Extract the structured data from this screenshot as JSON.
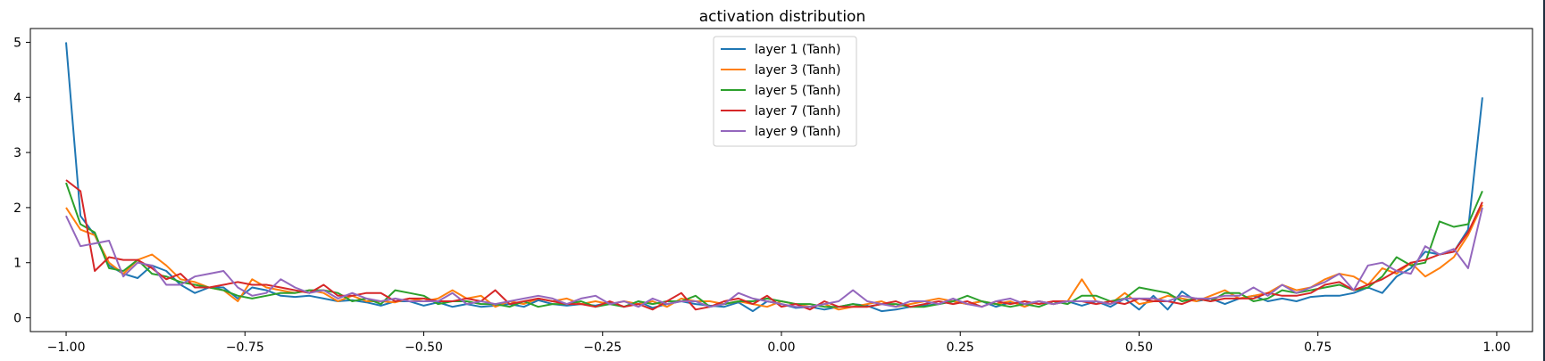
{
  "chart_data": {
    "type": "line",
    "title": "activation distribution",
    "xlabel": "",
    "ylabel": "",
    "xlim": [
      -1.05,
      1.05
    ],
    "ylim": [
      -0.25,
      5.25
    ],
    "xticks": [
      -1.0,
      -0.75,
      -0.5,
      -0.25,
      0.0,
      0.25,
      0.5,
      0.75,
      1.0
    ],
    "xtick_labels": [
      "−1.00",
      "−0.75",
      "−0.50",
      "−0.25",
      "0.00",
      "0.25",
      "0.50",
      "0.75",
      "1.00"
    ],
    "yticks": [
      0,
      1,
      2,
      3,
      4,
      5
    ],
    "ytick_labels": [
      "0",
      "1",
      "2",
      "3",
      "4",
      "5"
    ],
    "grid": false,
    "legend_position": "top-center",
    "series": [
      {
        "name": "layer 1 (Tanh)",
        "color": "#1f77b4",
        "x": [
          -1.0,
          -0.98,
          -0.96,
          -0.94,
          -0.92,
          -0.9,
          -0.88,
          -0.86,
          -0.84,
          -0.82,
          -0.8,
          -0.78,
          -0.76,
          -0.74,
          -0.72,
          -0.7,
          -0.68,
          -0.66,
          -0.64,
          -0.62,
          -0.6,
          -0.58,
          -0.56,
          -0.54,
          -0.52,
          -0.5,
          -0.48,
          -0.46,
          -0.44,
          -0.42,
          -0.4,
          -0.38,
          -0.36,
          -0.34,
          -0.32,
          -0.3,
          -0.28,
          -0.26,
          -0.24,
          -0.22,
          -0.2,
          -0.18,
          -0.16,
          -0.14,
          -0.12,
          -0.1,
          -0.08,
          -0.06,
          -0.04,
          -0.02,
          0.0,
          0.02,
          0.04,
          0.06,
          0.08,
          0.1,
          0.12,
          0.14,
          0.16,
          0.18,
          0.2,
          0.22,
          0.24,
          0.26,
          0.28,
          0.3,
          0.32,
          0.34,
          0.36,
          0.38,
          0.4,
          0.42,
          0.44,
          0.46,
          0.48,
          0.5,
          0.52,
          0.54,
          0.56,
          0.58,
          0.6,
          0.62,
          0.64,
          0.66,
          0.68,
          0.7,
          0.72,
          0.74,
          0.76,
          0.78,
          0.8,
          0.82,
          0.84,
          0.86,
          0.88,
          0.9,
          0.92,
          0.94,
          0.96,
          0.98
        ],
        "y": [
          5.0,
          1.85,
          1.5,
          0.95,
          0.8,
          0.72,
          0.95,
          0.85,
          0.6,
          0.45,
          0.55,
          0.55,
          0.35,
          0.55,
          0.5,
          0.4,
          0.38,
          0.4,
          0.35,
          0.3,
          0.32,
          0.28,
          0.22,
          0.3,
          0.3,
          0.22,
          0.28,
          0.2,
          0.25,
          0.2,
          0.22,
          0.25,
          0.2,
          0.32,
          0.25,
          0.22,
          0.25,
          0.22,
          0.28,
          0.2,
          0.3,
          0.18,
          0.25,
          0.3,
          0.25,
          0.22,
          0.2,
          0.28,
          0.12,
          0.3,
          0.25,
          0.18,
          0.2,
          0.15,
          0.2,
          0.25,
          0.22,
          0.12,
          0.15,
          0.2,
          0.22,
          0.25,
          0.3,
          0.25,
          0.3,
          0.2,
          0.28,
          0.25,
          0.3,
          0.25,
          0.3,
          0.22,
          0.3,
          0.2,
          0.35,
          0.15,
          0.4,
          0.15,
          0.48,
          0.3,
          0.35,
          0.25,
          0.35,
          0.4,
          0.3,
          0.35,
          0.3,
          0.38,
          0.4,
          0.4,
          0.45,
          0.55,
          0.45,
          0.75,
          0.9,
          1.2,
          1.15,
          1.2,
          1.6,
          4.0
        ]
      },
      {
        "name": "layer 3 (Tanh)",
        "color": "#ff7f0e",
        "x": [
          -1.0,
          -0.98,
          -0.96,
          -0.94,
          -0.92,
          -0.9,
          -0.88,
          -0.86,
          -0.84,
          -0.82,
          -0.8,
          -0.78,
          -0.76,
          -0.74,
          -0.72,
          -0.7,
          -0.68,
          -0.66,
          -0.64,
          -0.62,
          -0.6,
          -0.58,
          -0.56,
          -0.54,
          -0.52,
          -0.5,
          -0.48,
          -0.46,
          -0.44,
          -0.42,
          -0.4,
          -0.38,
          -0.36,
          -0.34,
          -0.32,
          -0.3,
          -0.28,
          -0.26,
          -0.24,
          -0.22,
          -0.2,
          -0.18,
          -0.16,
          -0.14,
          -0.12,
          -0.1,
          -0.08,
          -0.06,
          -0.04,
          -0.02,
          0.0,
          0.02,
          0.04,
          0.06,
          0.08,
          0.1,
          0.12,
          0.14,
          0.16,
          0.18,
          0.2,
          0.22,
          0.24,
          0.26,
          0.28,
          0.3,
          0.32,
          0.34,
          0.36,
          0.38,
          0.4,
          0.42,
          0.44,
          0.46,
          0.48,
          0.5,
          0.52,
          0.54,
          0.56,
          0.58,
          0.6,
          0.62,
          0.64,
          0.66,
          0.68,
          0.7,
          0.72,
          0.74,
          0.76,
          0.78,
          0.8,
          0.82,
          0.84,
          0.86,
          0.88,
          0.9,
          0.92,
          0.94,
          0.96,
          0.98
        ],
        "y": [
          2.0,
          1.6,
          1.5,
          1.0,
          0.8,
          1.05,
          1.15,
          0.95,
          0.7,
          0.65,
          0.55,
          0.5,
          0.3,
          0.7,
          0.55,
          0.5,
          0.45,
          0.5,
          0.45,
          0.3,
          0.4,
          0.3,
          0.3,
          0.28,
          0.35,
          0.3,
          0.35,
          0.5,
          0.35,
          0.4,
          0.2,
          0.3,
          0.25,
          0.35,
          0.3,
          0.35,
          0.25,
          0.3,
          0.25,
          0.3,
          0.25,
          0.3,
          0.2,
          0.35,
          0.3,
          0.3,
          0.25,
          0.3,
          0.25,
          0.2,
          0.3,
          0.25,
          0.2,
          0.25,
          0.15,
          0.2,
          0.25,
          0.3,
          0.2,
          0.25,
          0.3,
          0.35,
          0.3,
          0.25,
          0.3,
          0.25,
          0.3,
          0.2,
          0.3,
          0.25,
          0.3,
          0.7,
          0.3,
          0.25,
          0.45,
          0.25,
          0.3,
          0.4,
          0.35,
          0.3,
          0.4,
          0.5,
          0.35,
          0.4,
          0.45,
          0.6,
          0.5,
          0.55,
          0.7,
          0.8,
          0.75,
          0.6,
          0.9,
          0.8,
          1.0,
          0.75,
          0.9,
          1.1,
          1.5,
          2.05
        ]
      },
      {
        "name": "layer 5 (Tanh)",
        "color": "#2ca02c",
        "x": [
          -1.0,
          -0.98,
          -0.96,
          -0.94,
          -0.92,
          -0.9,
          -0.88,
          -0.86,
          -0.84,
          -0.82,
          -0.8,
          -0.78,
          -0.76,
          -0.74,
          -0.72,
          -0.7,
          -0.68,
          -0.66,
          -0.64,
          -0.62,
          -0.6,
          -0.58,
          -0.56,
          -0.54,
          -0.52,
          -0.5,
          -0.48,
          -0.46,
          -0.44,
          -0.42,
          -0.4,
          -0.38,
          -0.36,
          -0.34,
          -0.32,
          -0.3,
          -0.28,
          -0.26,
          -0.24,
          -0.22,
          -0.2,
          -0.18,
          -0.16,
          -0.14,
          -0.12,
          -0.1,
          -0.08,
          -0.06,
          -0.04,
          -0.02,
          0.0,
          0.02,
          0.04,
          0.06,
          0.08,
          0.1,
          0.12,
          0.14,
          0.16,
          0.18,
          0.2,
          0.22,
          0.24,
          0.26,
          0.28,
          0.3,
          0.32,
          0.34,
          0.36,
          0.38,
          0.4,
          0.42,
          0.44,
          0.46,
          0.48,
          0.5,
          0.52,
          0.54,
          0.56,
          0.58,
          0.6,
          0.62,
          0.64,
          0.66,
          0.68,
          0.7,
          0.72,
          0.74,
          0.76,
          0.78,
          0.8,
          0.82,
          0.84,
          0.86,
          0.88,
          0.9,
          0.92,
          0.94,
          0.96,
          0.98
        ],
        "y": [
          2.45,
          1.7,
          1.55,
          0.9,
          0.85,
          1.05,
          0.8,
          0.75,
          0.65,
          0.6,
          0.55,
          0.5,
          0.4,
          0.35,
          0.4,
          0.45,
          0.45,
          0.5,
          0.5,
          0.45,
          0.3,
          0.35,
          0.25,
          0.5,
          0.45,
          0.4,
          0.25,
          0.3,
          0.3,
          0.25,
          0.25,
          0.2,
          0.3,
          0.2,
          0.25,
          0.25,
          0.3,
          0.2,
          0.25,
          0.2,
          0.3,
          0.25,
          0.3,
          0.3,
          0.4,
          0.2,
          0.25,
          0.3,
          0.3,
          0.35,
          0.3,
          0.25,
          0.25,
          0.2,
          0.2,
          0.25,
          0.2,
          0.25,
          0.25,
          0.2,
          0.2,
          0.25,
          0.3,
          0.4,
          0.3,
          0.25,
          0.2,
          0.25,
          0.2,
          0.3,
          0.25,
          0.4,
          0.4,
          0.3,
          0.35,
          0.55,
          0.5,
          0.45,
          0.3,
          0.35,
          0.3,
          0.45,
          0.45,
          0.3,
          0.35,
          0.5,
          0.45,
          0.5,
          0.55,
          0.6,
          0.5,
          0.55,
          0.75,
          1.1,
          0.95,
          1.0,
          1.75,
          1.65,
          1.7,
          2.3
        ]
      },
      {
        "name": "layer 7 (Tanh)",
        "color": "#d62728",
        "x": [
          -1.0,
          -0.98,
          -0.96,
          -0.94,
          -0.92,
          -0.9,
          -0.88,
          -0.86,
          -0.84,
          -0.82,
          -0.8,
          -0.78,
          -0.76,
          -0.74,
          -0.72,
          -0.7,
          -0.68,
          -0.66,
          -0.64,
          -0.62,
          -0.6,
          -0.58,
          -0.56,
          -0.54,
          -0.52,
          -0.5,
          -0.48,
          -0.46,
          -0.44,
          -0.42,
          -0.4,
          -0.38,
          -0.36,
          -0.34,
          -0.32,
          -0.3,
          -0.28,
          -0.26,
          -0.24,
          -0.22,
          -0.2,
          -0.18,
          -0.16,
          -0.14,
          -0.12,
          -0.1,
          -0.08,
          -0.06,
          -0.04,
          -0.02,
          0.0,
          0.02,
          0.04,
          0.06,
          0.08,
          0.1,
          0.12,
          0.14,
          0.16,
          0.18,
          0.2,
          0.22,
          0.24,
          0.26,
          0.28,
          0.3,
          0.32,
          0.34,
          0.36,
          0.38,
          0.4,
          0.42,
          0.44,
          0.46,
          0.48,
          0.5,
          0.52,
          0.54,
          0.56,
          0.58,
          0.6,
          0.62,
          0.64,
          0.66,
          0.68,
          0.7,
          0.72,
          0.74,
          0.76,
          0.78,
          0.8,
          0.82,
          0.84,
          0.86,
          0.88,
          0.9,
          0.92,
          0.94,
          0.96,
          0.98
        ],
        "y": [
          2.5,
          2.3,
          0.85,
          1.1,
          1.05,
          1.05,
          0.9,
          0.7,
          0.8,
          0.55,
          0.55,
          0.6,
          0.65,
          0.6,
          0.6,
          0.55,
          0.5,
          0.45,
          0.6,
          0.4,
          0.4,
          0.45,
          0.45,
          0.3,
          0.35,
          0.35,
          0.3,
          0.3,
          0.35,
          0.3,
          0.5,
          0.25,
          0.3,
          0.35,
          0.3,
          0.25,
          0.25,
          0.2,
          0.3,
          0.2,
          0.25,
          0.15,
          0.3,
          0.45,
          0.15,
          0.2,
          0.3,
          0.35,
          0.25,
          0.4,
          0.2,
          0.25,
          0.15,
          0.3,
          0.2,
          0.2,
          0.2,
          0.25,
          0.3,
          0.2,
          0.25,
          0.3,
          0.25,
          0.3,
          0.2,
          0.3,
          0.25,
          0.3,
          0.25,
          0.3,
          0.3,
          0.3,
          0.25,
          0.3,
          0.25,
          0.35,
          0.3,
          0.3,
          0.25,
          0.35,
          0.3,
          0.35,
          0.35,
          0.35,
          0.45,
          0.4,
          0.4,
          0.45,
          0.6,
          0.65,
          0.5,
          0.6,
          0.7,
          0.85,
          1.0,
          1.05,
          1.15,
          1.2,
          1.55,
          2.1
        ]
      },
      {
        "name": "layer 9 (Tanh)",
        "color": "#9467bd",
        "x": [
          -1.0,
          -0.98,
          -0.96,
          -0.94,
          -0.92,
          -0.9,
          -0.88,
          -0.86,
          -0.84,
          -0.82,
          -0.8,
          -0.78,
          -0.76,
          -0.74,
          -0.72,
          -0.7,
          -0.68,
          -0.66,
          -0.64,
          -0.62,
          -0.6,
          -0.58,
          -0.56,
          -0.54,
          -0.52,
          -0.5,
          -0.48,
          -0.46,
          -0.44,
          -0.42,
          -0.4,
          -0.38,
          -0.36,
          -0.34,
          -0.32,
          -0.3,
          -0.28,
          -0.26,
          -0.24,
          -0.22,
          -0.2,
          -0.18,
          -0.16,
          -0.14,
          -0.12,
          -0.1,
          -0.08,
          -0.06,
          -0.04,
          -0.02,
          0.0,
          0.02,
          0.04,
          0.06,
          0.08,
          0.1,
          0.12,
          0.14,
          0.16,
          0.18,
          0.2,
          0.22,
          0.24,
          0.26,
          0.28,
          0.3,
          0.32,
          0.34,
          0.36,
          0.38,
          0.4,
          0.42,
          0.44,
          0.46,
          0.48,
          0.5,
          0.52,
          0.54,
          0.56,
          0.58,
          0.6,
          0.62,
          0.64,
          0.66,
          0.68,
          0.7,
          0.72,
          0.74,
          0.76,
          0.78,
          0.8,
          0.82,
          0.84,
          0.86,
          0.88,
          0.9,
          0.92,
          0.94,
          0.96,
          0.98
        ],
        "y": [
          1.85,
          1.3,
          1.35,
          1.4,
          0.75,
          1.0,
          0.95,
          0.6,
          0.6,
          0.75,
          0.8,
          0.85,
          0.55,
          0.4,
          0.45,
          0.7,
          0.55,
          0.45,
          0.5,
          0.35,
          0.45,
          0.35,
          0.3,
          0.35,
          0.3,
          0.3,
          0.3,
          0.45,
          0.25,
          0.3,
          0.25,
          0.3,
          0.35,
          0.4,
          0.35,
          0.25,
          0.35,
          0.4,
          0.25,
          0.3,
          0.2,
          0.35,
          0.25,
          0.3,
          0.3,
          0.2,
          0.25,
          0.45,
          0.35,
          0.3,
          0.25,
          0.2,
          0.2,
          0.25,
          0.3,
          0.5,
          0.3,
          0.25,
          0.2,
          0.3,
          0.3,
          0.25,
          0.35,
          0.25,
          0.2,
          0.3,
          0.35,
          0.25,
          0.3,
          0.25,
          0.3,
          0.3,
          0.3,
          0.25,
          0.35,
          0.35,
          0.35,
          0.3,
          0.4,
          0.35,
          0.35,
          0.4,
          0.4,
          0.55,
          0.4,
          0.6,
          0.45,
          0.55,
          0.65,
          0.8,
          0.5,
          0.95,
          1.0,
          0.85,
          0.8,
          1.3,
          1.15,
          1.25,
          0.9,
          2.0
        ]
      }
    ]
  }
}
